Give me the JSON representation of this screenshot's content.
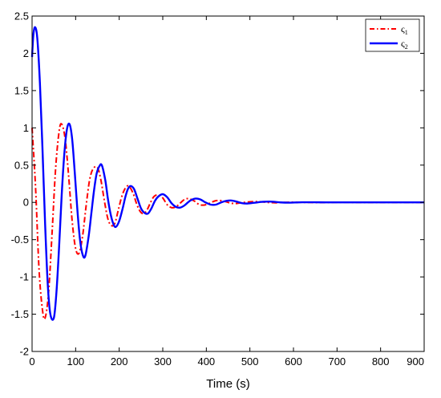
{
  "chart_data": {
    "type": "line",
    "title": "",
    "xlabel": "Time (s)",
    "ylabel": "",
    "xlim": [
      0,
      900
    ],
    "ylim": [
      -2,
      2.5
    ],
    "xticks": [
      0,
      100,
      200,
      300,
      400,
      500,
      600,
      700,
      800,
      900
    ],
    "yticks": [
      -2,
      -1.5,
      -1,
      -0.5,
      0,
      0.5,
      1,
      1.5,
      2,
      2.5
    ],
    "xtick_labels": [
      "0",
      "100",
      "200",
      "300",
      "400",
      "500",
      "600",
      "700",
      "800",
      "900"
    ],
    "ytick_labels": [
      "-2",
      "-1.5",
      "-1",
      "-0.5",
      "0",
      "0.5",
      "1",
      "1.5",
      "2",
      "2.5"
    ],
    "grid": false,
    "legend_position": "top-right",
    "series": [
      {
        "name": "ς1",
        "name_base": "ς",
        "name_sub": "1",
        "color": "#ff0000",
        "style": "dash-dot",
        "x": [
          0,
          8,
          16,
          24,
          30,
          38,
          46,
          54,
          62,
          68,
          76,
          84,
          92,
          100,
          108,
          116,
          124,
          132,
          140,
          150,
          158,
          166,
          174,
          182,
          190,
          198,
          206,
          214,
          222,
          232,
          240,
          248,
          256,
          264,
          272,
          280,
          290,
          300,
          310,
          320,
          330,
          340,
          350,
          360,
          372,
          384,
          396,
          408,
          420,
          432,
          444,
          456,
          468,
          480,
          500,
          520,
          540,
          560,
          580,
          600,
          630,
          660,
          700,
          750,
          800,
          850,
          900
        ],
        "y": [
          1.0,
          0.2,
          -0.9,
          -1.45,
          -1.55,
          -1.2,
          -0.4,
          0.45,
          0.95,
          1.05,
          0.85,
          0.35,
          -0.25,
          -0.62,
          -0.68,
          -0.45,
          -0.05,
          0.3,
          0.45,
          0.47,
          0.3,
          0.02,
          -0.22,
          -0.31,
          -0.28,
          -0.1,
          0.08,
          0.19,
          0.22,
          0.12,
          -0.02,
          -0.12,
          -0.15,
          -0.1,
          0.0,
          0.08,
          0.1,
          0.06,
          -0.03,
          -0.07,
          -0.06,
          -0.01,
          0.04,
          0.05,
          0.02,
          -0.03,
          -0.035,
          -0.01,
          0.02,
          0.025,
          0.01,
          -0.01,
          -0.015,
          -0.005,
          0.008,
          0.01,
          0.0,
          -0.005,
          0.0,
          0.003,
          0.0,
          -0.002,
          0.001,
          0.0,
          0.0,
          0.0,
          0.0
        ]
      },
      {
        "name": "ς2",
        "name_base": "ς",
        "name_sub": "2",
        "color": "#0000ff",
        "style": "solid",
        "x": [
          0,
          3,
          7,
          12,
          18,
          24,
          30,
          36,
          42,
          50,
          56,
          62,
          68,
          74,
          80,
          86,
          92,
          98,
          104,
          110,
          116,
          122,
          130,
          136,
          142,
          148,
          154,
          160,
          168,
          174,
          180,
          186,
          192,
          200,
          208,
          214,
          220,
          226,
          234,
          242,
          250,
          258,
          266,
          274,
          282,
          290,
          300,
          310,
          320,
          330,
          340,
          350,
          362,
          374,
          386,
          398,
          410,
          422,
          434,
          446,
          458,
          470,
          482,
          494,
          510,
          530,
          550,
          570,
          590,
          620,
          660,
          700,
          750,
          800,
          850,
          900
        ],
        "y": [
          1.95,
          2.25,
          2.35,
          2.2,
          1.6,
          0.7,
          -0.3,
          -1.1,
          -1.5,
          -1.55,
          -1.2,
          -0.6,
          0.1,
          0.65,
          0.98,
          1.05,
          0.85,
          0.4,
          -0.1,
          -0.5,
          -0.7,
          -0.72,
          -0.45,
          -0.15,
          0.15,
          0.38,
          0.48,
          0.5,
          0.3,
          0.05,
          -0.15,
          -0.28,
          -0.33,
          -0.25,
          -0.08,
          0.07,
          0.18,
          0.22,
          0.18,
          0.05,
          -0.08,
          -0.14,
          -0.15,
          -0.08,
          0.02,
          0.08,
          0.11,
          0.07,
          -0.01,
          -0.06,
          -0.07,
          -0.04,
          0.02,
          0.05,
          0.04,
          0.0,
          -0.03,
          -0.03,
          0.0,
          0.02,
          0.025,
          0.01,
          -0.01,
          -0.015,
          -0.005,
          0.008,
          0.01,
          0.0,
          -0.004,
          0.002,
          0.001,
          0.0,
          0.0,
          0.0,
          0.0,
          0.0
        ]
      }
    ]
  }
}
